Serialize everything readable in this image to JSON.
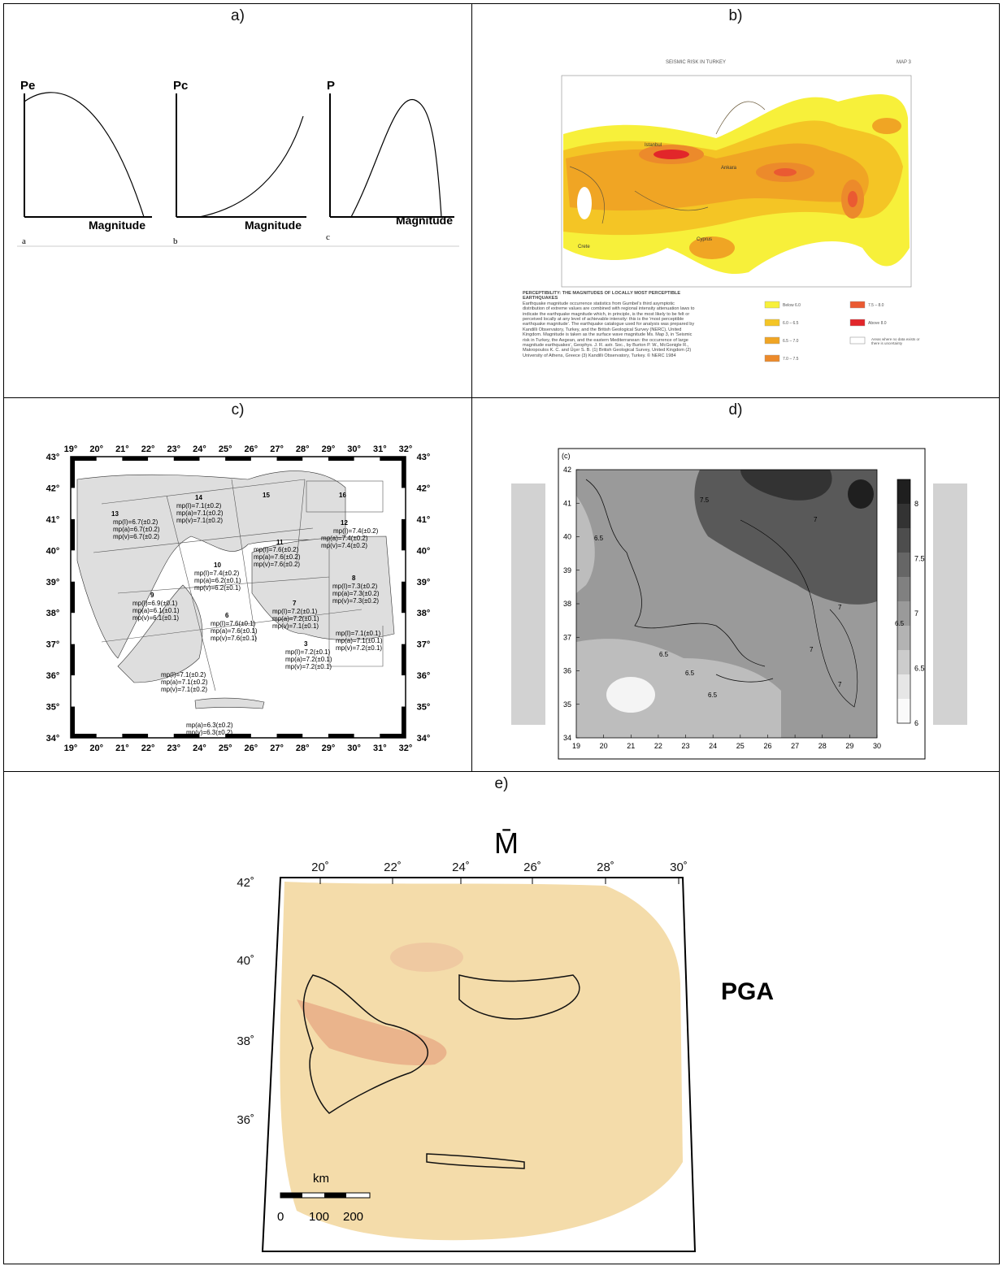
{
  "panels": {
    "a": {
      "label": "a)",
      "sub": [
        {
          "ylabel": "Pe",
          "xlabel": "Magnitude",
          "tag": "a"
        },
        {
          "ylabel": "Pc",
          "xlabel": "Magnitude",
          "tag": "b"
        },
        {
          "ylabel": "P",
          "xlabel": "Magnitude",
          "tag": "c"
        }
      ]
    },
    "b": {
      "label": "b)",
      "title": "SEISMIC RISK IN TURKEY",
      "map_no": "MAP 3",
      "cities": [
        "Istanbul",
        "Ankara",
        "Crete",
        "Cyprus"
      ],
      "caption_title": "PERCEPTIBILITY: THE MAGNITUDES OF LOCALLY MOST PERCEPTIBLE EARTHQUAKES",
      "caption_body": "Earthquake magnitude occurrence statistics from Gumbel's third asymptotic distribution of extreme values are combined with regional intensity attenuation laws to indicate the earthquake magnitude which, in principle, is the most likely to be felt or perceived locally at any level of achievable intensity: this is the 'most perceptible earthquake magnitude'. The earthquake catalogue used for analysis was prepared by Kandilli Observatory, Turkey, and the British Geological Survey (NERC), United Kingdom. Magnitude is taken as the surface wave magnitude Ms. Map 3, in 'Seismic risk in Turkey, the Aegean, and the eastern Mediterranean: the occurrence of large magnitude earthquakes', Geophys. J. R. astr. Soc., by Burton P. W., McGonigle R., Makropoulos K. C. and Üçer S. B. (1) British Geological Survey, United Kingdom (2) University of Athens, Greece (3) Kandilli Observatory, Turkey. © NERC 1984",
      "legend": [
        {
          "label": "Below 6.0",
          "color": "#f7f03a"
        },
        {
          "label": "6.0 – 6.5",
          "color": "#f4c525"
        },
        {
          "label": "6.5 – 7.0",
          "color": "#f0a524"
        },
        {
          "label": "7.0 – 7.5",
          "color": "#ec8a2b"
        },
        {
          "label": "7.5 – 8.0",
          "color": "#ea5a32"
        },
        {
          "label": "Above 8.0",
          "color": "#e2262a"
        },
        {
          "label": "Areas where no data exists or there is uncertainty",
          "color": "#ffffff"
        }
      ]
    },
    "c": {
      "label": "c)",
      "lon_ticks": [
        "19°",
        "20°",
        "21°",
        "22°",
        "23°",
        "24°",
        "25°",
        "26°",
        "27°",
        "28°",
        "29°",
        "30°",
        "31°",
        "32°"
      ],
      "lat_ticks": [
        "43°",
        "42°",
        "41°",
        "40°",
        "39°",
        "38°",
        "37°",
        "36°",
        "35°",
        "34°"
      ],
      "zones": [
        {
          "id": "13",
          "lines": [
            "mp(I)=6.7(±0.2)",
            "mp(a)=6.7(±0.2)",
            "mp(v)=6.7(±0.2)"
          ]
        },
        {
          "id": "14",
          "lines": [
            "mp(I)=7.1(±0.2)",
            "mp(a)=7.1(±0.2)",
            "mp(v)=7.1(±0.2)"
          ]
        },
        {
          "id": "15",
          "lines": []
        },
        {
          "id": "16",
          "lines": []
        },
        {
          "id": "12",
          "lines": [
            "mp(I)=7.4(±0.2)",
            "mp(a)=7.4(±0.2)",
            "mp(v)=7.4(±0.2)"
          ]
        },
        {
          "id": "11",
          "lines": [
            "mp(I)=7.6(±0.2)",
            "mp(a)=7.6(±0.2)",
            "mp(v)=7.6(±0.2)"
          ]
        },
        {
          "id": "10",
          "lines": [
            "mp(I)=7.4(±0.2)",
            "mp(a)=6.2(±0.1)",
            "mp(v)=6.2(±0.1)"
          ]
        },
        {
          "id": "9",
          "lines": [
            "mp(I)=6.9(±0.1)",
            "mp(a)=6.1(±0.1)",
            "mp(v)=6.1(±0.1)"
          ]
        },
        {
          "id": "8",
          "lines": [
            "mp(I)=7.3(±0.2)",
            "mp(a)=7.3(±0.2)",
            "mp(v)=7.3(±0.2)"
          ]
        },
        {
          "id": "7",
          "lines": [
            "mp(I)=7.2(±0.1)",
            "mp(a)=7.2(±0.1)",
            "mp(v)=7.1(±0.1)"
          ]
        },
        {
          "id": "6",
          "lines": [
            "mp(I)=7.6(±0.1)",
            "mp(a)=7.6(±0.1)",
            "mp(v)=7.6(±0.1)"
          ]
        },
        {
          "id": "",
          "lines": [
            "mp(I)=7.1(±0.1)",
            "mp(a)=7.1(±0.1)",
            "mp(v)=7.2(±0.1)"
          ]
        },
        {
          "id": "3",
          "lines": [
            "mp(I)=7.2(±0.1)",
            "mp(a)=7.2(±0.1)",
            "mp(v)=7.2(±0.1)"
          ]
        },
        {
          "id": "",
          "lines": [
            "mp(I)=7.1(±0.2)",
            "mp(a)=7.1(±0.2)",
            "mp(v)=7.1(±0.2)"
          ]
        },
        {
          "id": "",
          "lines": [
            "mp(a)=6.3(±0.2)",
            "mp(v)=6.3(±0.2)"
          ]
        }
      ]
    },
    "d": {
      "label": "d)",
      "corner": "(c)",
      "x_ticks": [
        "19",
        "20",
        "21",
        "22",
        "23",
        "24",
        "25",
        "26",
        "27",
        "28",
        "29",
        "30"
      ],
      "y_ticks": [
        "42",
        "41",
        "40",
        "39",
        "38",
        "37",
        "36",
        "35",
        "34"
      ],
      "colorbar_ticks": [
        "8",
        "7.5",
        "7",
        "6.5",
        "6"
      ],
      "contour_labels": [
        "7.5",
        "6.5",
        "7",
        "6.5",
        "7",
        "6.5",
        "6.5",
        "7",
        "6.5",
        "7"
      ]
    },
    "e": {
      "label": "e)",
      "map_title": "M̄",
      "lon_ticks": [
        "20˚",
        "22˚",
        "24˚",
        "26˚",
        "28˚",
        "30˚"
      ],
      "lat_ticks": [
        "42˚",
        "40˚",
        "38˚",
        "36˚"
      ],
      "scale_unit": "km",
      "scale_ticks": [
        "0",
        "100",
        "200"
      ],
      "side_label": "PGA"
    }
  }
}
